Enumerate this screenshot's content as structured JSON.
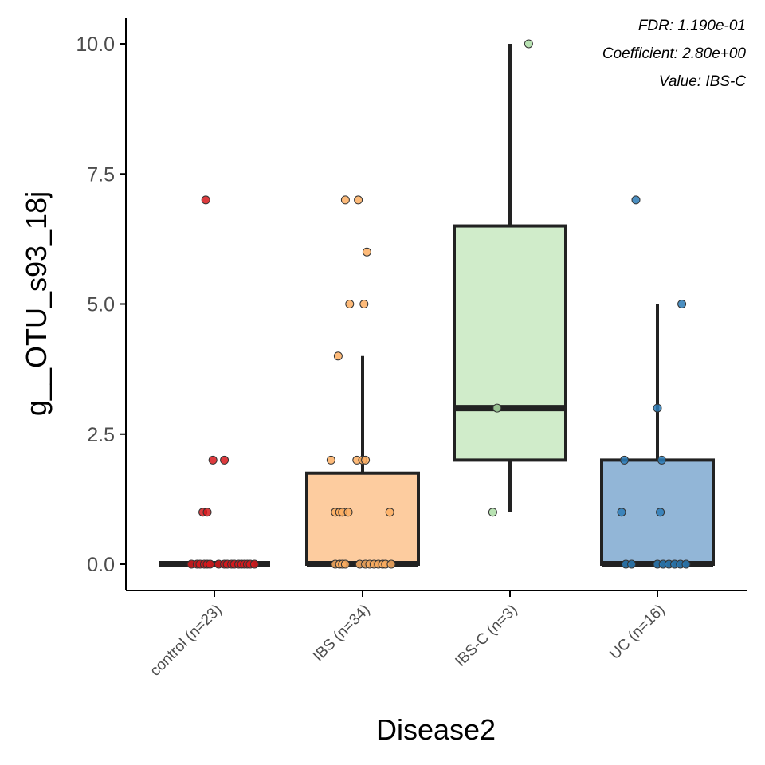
{
  "chart_data": {
    "type": "box",
    "title": "",
    "xlabel": "Disease2",
    "ylabel": "g__OTU_s93_18j",
    "ylim": [
      -0.5,
      10.5
    ],
    "yticks": [
      0,
      2.5,
      5,
      7.5,
      10
    ],
    "ytick_labels": [
      "0.0",
      "2.5",
      "5.0",
      "7.5",
      "10.0"
    ],
    "grid": false,
    "legend": "none",
    "annotations": [
      "FDR: 1.190e-01",
      "Coefficient: 2.80e+00",
      "Value: IBS-C"
    ],
    "categories": [
      "control (n=23)",
      "IBS (n=34)",
      "IBS-C (n=3)",
      "UC (n=16)"
    ],
    "groups": [
      {
        "category": "control (n=23)",
        "fill": "#f4a3a8",
        "point_color": "#d7191c",
        "box": {
          "min": 0,
          "q1": 0,
          "median": 0,
          "q3": 0,
          "max": 0
        },
        "points": [
          {
            "x": -0.16,
            "y": 0
          },
          {
            "x": -0.12,
            "y": 0
          },
          {
            "x": -0.1,
            "y": 0
          },
          {
            "x": -0.07,
            "y": 0
          },
          {
            "x": -0.05,
            "y": 0
          },
          {
            "x": -0.03,
            "y": 0
          },
          {
            "x": 0.03,
            "y": 0
          },
          {
            "x": 0.07,
            "y": 0
          },
          {
            "x": 0.09,
            "y": 0
          },
          {
            "x": 0.12,
            "y": 0
          },
          {
            "x": 0.14,
            "y": 0
          },
          {
            "x": 0.17,
            "y": 0
          },
          {
            "x": 0.19,
            "y": 0
          },
          {
            "x": 0.21,
            "y": 0
          },
          {
            "x": 0.23,
            "y": 0
          },
          {
            "x": 0.25,
            "y": 0
          },
          {
            "x": 0.28,
            "y": 0
          },
          {
            "x": -0.08,
            "y": 1
          },
          {
            "x": -0.05,
            "y": 1
          },
          {
            "x": -0.01,
            "y": 2
          },
          {
            "x": 0.07,
            "y": 2
          },
          {
            "x": -0.06,
            "y": 7
          }
        ]
      },
      {
        "category": "IBS (n=34)",
        "fill": "#fdcc9f",
        "point_color": "#fdae61",
        "box": {
          "min": 0,
          "q1": 0,
          "median": 0,
          "q3": 1.75,
          "max": 4
        },
        "points": [
          {
            "x": -0.19,
            "y": 0
          },
          {
            "x": -0.16,
            "y": 0
          },
          {
            "x": -0.14,
            "y": 0
          },
          {
            "x": -0.12,
            "y": 0
          },
          {
            "x": -0.02,
            "y": 0
          },
          {
            "x": 0.02,
            "y": 0
          },
          {
            "x": 0.05,
            "y": 0
          },
          {
            "x": 0.08,
            "y": 0
          },
          {
            "x": 0.11,
            "y": 0
          },
          {
            "x": 0.14,
            "y": 0
          },
          {
            "x": 0.16,
            "y": 0
          },
          {
            "x": 0.2,
            "y": 0
          },
          {
            "x": -0.19,
            "y": 1
          },
          {
            "x": -0.16,
            "y": 1
          },
          {
            "x": -0.14,
            "y": 1
          },
          {
            "x": -0.1,
            "y": 1
          },
          {
            "x": 0.19,
            "y": 1
          },
          {
            "x": -0.22,
            "y": 2
          },
          {
            "x": -0.04,
            "y": 2
          },
          {
            "x": 0.0,
            "y": 2
          },
          {
            "x": 0.02,
            "y": 2
          },
          {
            "x": -0.17,
            "y": 4
          },
          {
            "x": -0.09,
            "y": 5
          },
          {
            "x": 0.01,
            "y": 5
          },
          {
            "x": 0.03,
            "y": 6
          },
          {
            "x": -0.12,
            "y": 7
          },
          {
            "x": -0.03,
            "y": 7
          }
        ]
      },
      {
        "category": "IBS-C (n=3)",
        "fill": "#d0ecca",
        "point_color": "#abdda4",
        "box": {
          "min": 1,
          "q1": 2,
          "median": 3,
          "q3": 6.5,
          "max": 10
        },
        "points": [
          {
            "x": -0.12,
            "y": 1
          },
          {
            "x": -0.09,
            "y": 3
          },
          {
            "x": 0.13,
            "y": 10
          }
        ]
      },
      {
        "category": "UC (n=16)",
        "fill": "#92b6d7",
        "point_color": "#2c7bb6",
        "box": {
          "min": 0,
          "q1": 0,
          "median": 0,
          "q3": 2,
          "max": 5
        },
        "points": [
          {
            "x": -0.22,
            "y": 0
          },
          {
            "x": -0.18,
            "y": 0
          },
          {
            "x": 0.0,
            "y": 0
          },
          {
            "x": 0.04,
            "y": 0
          },
          {
            "x": 0.08,
            "y": 0
          },
          {
            "x": 0.12,
            "y": 0
          },
          {
            "x": 0.16,
            "y": 0
          },
          {
            "x": 0.2,
            "y": 0
          },
          {
            "x": -0.25,
            "y": 1
          },
          {
            "x": 0.02,
            "y": 1
          },
          {
            "x": -0.23,
            "y": 2
          },
          {
            "x": 0.03,
            "y": 2
          },
          {
            "x": 0.0,
            "y": 3
          },
          {
            "x": 0.17,
            "y": 5
          },
          {
            "x": -0.15,
            "y": 7
          }
        ]
      }
    ]
  }
}
